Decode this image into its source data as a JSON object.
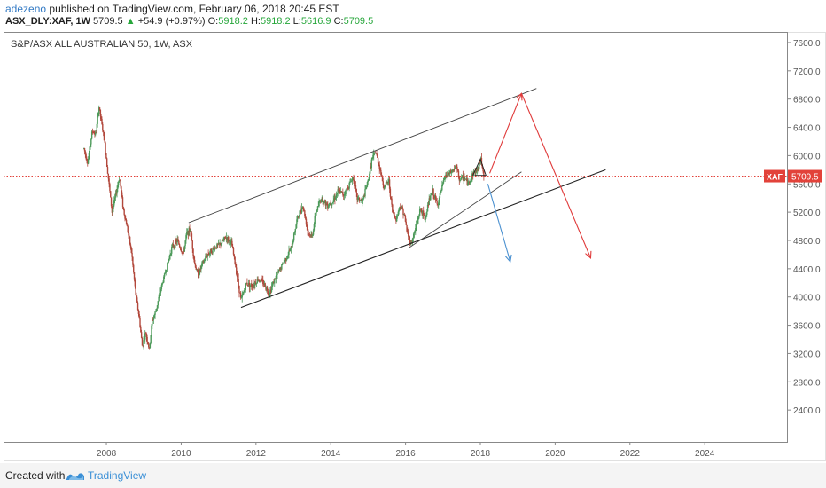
{
  "header": {
    "author": "adezeno",
    "published_text": "published on TradingView.com, February 06, 2018 20:45 EST",
    "symbol": "ASX_DLY:XAF, 1W",
    "last": "5709.5",
    "change_arrow": "▲",
    "change": "+54.9 (+0.97%)",
    "o_label": "O:",
    "o_value": "5918.2",
    "h_label": "H:",
    "h_value": "5918.2",
    "l_label": "L:",
    "l_value": "5616.9",
    "c_label": "C:",
    "c_value": "5709.5"
  },
  "footer": {
    "created_with": "Created with",
    "brand": "TradingView"
  },
  "chart_data": {
    "type": "candlestick",
    "title": "S&P/ASX ALL AUSTRALIAN 50, 1W, ASX",
    "x_ticks": [
      "2008",
      "2010",
      "2012",
      "2014",
      "2016",
      "2018",
      "2020",
      "2022",
      "2024"
    ],
    "y_ticks": [
      "2400.0",
      "2800.0",
      "3200.0",
      "3600.0",
      "4000.0",
      "4400.0",
      "4800.0",
      "5200.0",
      "5600.0",
      "6000.0",
      "6400.0",
      "6800.0",
      "7200.0",
      "7600.0"
    ],
    "ylim": [
      1950,
      7750
    ],
    "xlim": [
      2005.25,
      2026.2
    ],
    "last_price": 5709.5,
    "last_price_tag": "XAF",
    "last_price_label": "5709.5",
    "colors": {
      "up": "#4d9a5a",
      "down": "#b2483c",
      "price_line": "#e2423a",
      "red_arrow": "#e03a3a",
      "blue_arrow": "#4a90d0",
      "trendline": "#333333"
    },
    "price_path": [
      [
        2007.4,
        6100
      ],
      [
        2007.5,
        5900
      ],
      [
        2007.62,
        6350
      ],
      [
        2007.72,
        6300
      ],
      [
        2007.8,
        6700
      ],
      [
        2007.95,
        6200
      ],
      [
        2008.05,
        5700
      ],
      [
        2008.15,
        5200
      ],
      [
        2008.25,
        5450
      ],
      [
        2008.35,
        5700
      ],
      [
        2008.45,
        5250
      ],
      [
        2008.55,
        5000
      ],
      [
        2008.68,
        4600
      ],
      [
        2008.78,
        4050
      ],
      [
        2008.88,
        3700
      ],
      [
        2008.96,
        3300
      ],
      [
        2009.05,
        3500
      ],
      [
        2009.15,
        3250
      ],
      [
        2009.22,
        3650
      ],
      [
        2009.32,
        3800
      ],
      [
        2009.45,
        4100
      ],
      [
        2009.6,
        4400
      ],
      [
        2009.75,
        4700
      ],
      [
        2009.9,
        4800
      ],
      [
        2010.05,
        4600
      ],
      [
        2010.15,
        4900
      ],
      [
        2010.25,
        4950
      ],
      [
        2010.35,
        4500
      ],
      [
        2010.45,
        4300
      ],
      [
        2010.55,
        4450
      ],
      [
        2010.7,
        4600
      ],
      [
        2010.9,
        4700
      ],
      [
        2011.05,
        4750
      ],
      [
        2011.2,
        4850
      ],
      [
        2011.35,
        4750
      ],
      [
        2011.45,
        4450
      ],
      [
        2011.6,
        3950
      ],
      [
        2011.75,
        4200
      ],
      [
        2011.9,
        4150
      ],
      [
        2012.05,
        4250
      ],
      [
        2012.2,
        4200
      ],
      [
        2012.35,
        4050
      ],
      [
        2012.5,
        4250
      ],
      [
        2012.65,
        4400
      ],
      [
        2012.8,
        4550
      ],
      [
        2012.95,
        4700
      ],
      [
        2013.1,
        5100
      ],
      [
        2013.25,
        5300
      ],
      [
        2013.4,
        4900
      ],
      [
        2013.5,
        4850
      ],
      [
        2013.6,
        5200
      ],
      [
        2013.75,
        5400
      ],
      [
        2013.9,
        5300
      ],
      [
        2014.05,
        5350
      ],
      [
        2014.2,
        5500
      ],
      [
        2014.35,
        5450
      ],
      [
        2014.5,
        5600
      ],
      [
        2014.6,
        5700
      ],
      [
        2014.7,
        5400
      ],
      [
        2014.85,
        5350
      ],
      [
        2015.0,
        5650
      ],
      [
        2015.1,
        5950
      ],
      [
        2015.2,
        6050
      ],
      [
        2015.3,
        5850
      ],
      [
        2015.42,
        5550
      ],
      [
        2015.55,
        5650
      ],
      [
        2015.65,
        5200
      ],
      [
        2015.75,
        5100
      ],
      [
        2015.85,
        5300
      ],
      [
        2015.95,
        5200
      ],
      [
        2016.05,
        4900
      ],
      [
        2016.15,
        4750
      ],
      [
        2016.28,
        5000
      ],
      [
        2016.4,
        5250
      ],
      [
        2016.52,
        5100
      ],
      [
        2016.62,
        5350
      ],
      [
        2016.72,
        5500
      ],
      [
        2016.85,
        5300
      ],
      [
        2016.95,
        5500
      ],
      [
        2017.05,
        5700
      ],
      [
        2017.2,
        5750
      ],
      [
        2017.35,
        5850
      ],
      [
        2017.45,
        5650
      ],
      [
        2017.55,
        5700
      ],
      [
        2017.68,
        5600
      ],
      [
        2017.8,
        5750
      ],
      [
        2017.92,
        5800
      ],
      [
        2018.02,
        5950
      ],
      [
        2018.1,
        5709.5
      ]
    ],
    "channel_upper": [
      [
        2010.2,
        5050
      ],
      [
        2019.5,
        6950
      ]
    ],
    "channel_lower": [
      [
        2011.6,
        3850
      ],
      [
        2021.35,
        5800
      ]
    ],
    "short_trendline": [
      [
        2016.1,
        4700
      ],
      [
        2019.1,
        5770
      ]
    ],
    "triangle_pattern": [
      [
        2017.8,
        5720
      ],
      [
        2018.0,
        5950
      ],
      [
        2018.15,
        5720
      ],
      [
        2017.85,
        5720
      ]
    ],
    "red_arrow_path": [
      [
        2018.25,
        5750
      ],
      [
        2019.1,
        6880
      ],
      [
        2020.95,
        4550
      ]
    ],
    "blue_arrow_path": [
      [
        2018.2,
        5600
      ],
      [
        2018.8,
        4500
      ]
    ]
  }
}
